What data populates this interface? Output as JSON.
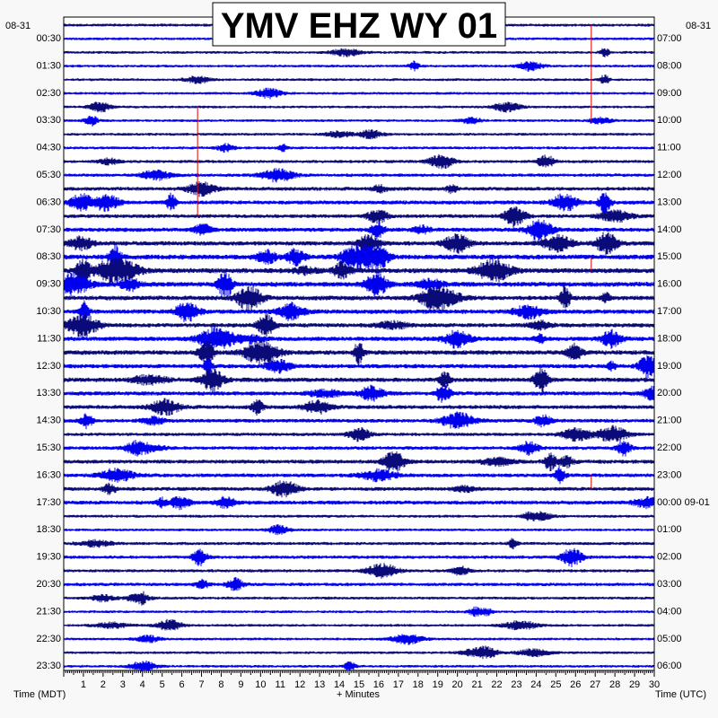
{
  "chart_data": {
    "type": "line",
    "title": "YMV EHZ WY 01",
    "left_date": "08-31",
    "right_date": "08-31",
    "left_axis_title": "Time (MDT)",
    "right_axis_title": "Time (UTC)",
    "x_axis_title": "+ Minutes",
    "xlim": [
      0,
      30
    ],
    "x_ticks": [
      "1",
      "2",
      "3",
      "4",
      "5",
      "6",
      "7",
      "8",
      "9",
      "10",
      "11",
      "12",
      "13",
      "14",
      "15",
      "16",
      "17",
      "18",
      "19",
      "20",
      "21",
      "22",
      "23",
      "24",
      "25",
      "26",
      "27",
      "28",
      "29",
      "30"
    ],
    "left_labels": [
      "00:30",
      "01:30",
      "02:30",
      "03:30",
      "04:30",
      "05:30",
      "06:30",
      "07:30",
      "08:30",
      "09:30",
      "10:30",
      "11:30",
      "12:30",
      "13:30",
      "14:30",
      "15:30",
      "16:30",
      "17:30",
      "18:30",
      "19:30",
      "20:30",
      "21:30",
      "22:30",
      "23:30"
    ],
    "right_labels": [
      "07:00",
      "08:00",
      "09:00",
      "10:00",
      "11:00",
      "12:00",
      "13:00",
      "14:00",
      "15:00",
      "16:00",
      "17:00",
      "18:00",
      "19:00",
      "20:00",
      "21:00",
      "22:00",
      "23:00",
      "00:00 09-01",
      "01:00",
      "02:00",
      "03:00",
      "04:00",
      "05:00",
      "06:00"
    ],
    "trace_count": 48,
    "trace_colors": [
      "#0a0a78",
      "#0000ee"
    ],
    "marker_color": "#dd0000",
    "activity": [
      {
        "trace": 0,
        "level": 0.4
      },
      {
        "trace": 1,
        "level": 0.3
      },
      {
        "trace": 2,
        "level": 0.3
      },
      {
        "trace": 3,
        "level": 0.3
      },
      {
        "trace": 4,
        "level": 0.3
      },
      {
        "trace": 5,
        "level": 0.3
      },
      {
        "trace": 6,
        "level": 0.3
      },
      {
        "trace": 7,
        "level": 0.3
      },
      {
        "trace": 8,
        "level": 0.35
      },
      {
        "trace": 9,
        "level": 0.4
      },
      {
        "trace": 10,
        "level": 0.5
      },
      {
        "trace": 11,
        "level": 0.6
      },
      {
        "trace": 12,
        "level": 0.8
      },
      {
        "trace": 13,
        "level": 0.9
      },
      {
        "trace": 14,
        "level": 0.8
      },
      {
        "trace": 15,
        "level": 1.0
      },
      {
        "trace": 16,
        "level": 1.1
      },
      {
        "trace": 17,
        "level": 1.3
      },
      {
        "trace": 18,
        "level": 1.4
      },
      {
        "trace": 19,
        "level": 1.3
      },
      {
        "trace": 20,
        "level": 1.2
      },
      {
        "trace": 21,
        "level": 1.1
      },
      {
        "trace": 22,
        "level": 1.0
      },
      {
        "trace": 23,
        "level": 1.1
      },
      {
        "trace": 24,
        "level": 1.2
      },
      {
        "trace": 25,
        "level": 1.0
      },
      {
        "trace": 26,
        "level": 1.1
      },
      {
        "trace": 27,
        "level": 1.0
      },
      {
        "trace": 28,
        "level": 0.9
      },
      {
        "trace": 29,
        "level": 0.8
      },
      {
        "trace": 30,
        "level": 0.6
      },
      {
        "trace": 31,
        "level": 0.7
      },
      {
        "trace": 32,
        "level": 0.9
      },
      {
        "trace": 33,
        "level": 0.8
      },
      {
        "trace": 34,
        "level": 0.8
      },
      {
        "trace": 35,
        "level": 0.9
      },
      {
        "trace": 36,
        "level": 0.4
      },
      {
        "trace": 37,
        "level": 0.3
      },
      {
        "trace": 38,
        "level": 0.5
      },
      {
        "trace": 39,
        "level": 0.6
      },
      {
        "trace": 40,
        "level": 0.5
      },
      {
        "trace": 41,
        "level": 0.6
      },
      {
        "trace": 42,
        "level": 0.4
      },
      {
        "trace": 43,
        "level": 0.3
      },
      {
        "trace": 44,
        "level": 0.3
      },
      {
        "trace": 45,
        "level": 0.3
      },
      {
        "trace": 46,
        "level": 0.3
      },
      {
        "trace": 47,
        "level": 0.3
      }
    ],
    "markers": [
      {
        "minute": 6.8,
        "trace_start": 6,
        "trace_end": 14
      },
      {
        "minute": 26.8,
        "trace_start": 0,
        "trace_end": 7
      },
      {
        "minute": 26.8,
        "trace_start": 17,
        "trace_end": 18
      },
      {
        "minute": 26.8,
        "trace_start": 33,
        "trace_end": 34
      }
    ]
  }
}
